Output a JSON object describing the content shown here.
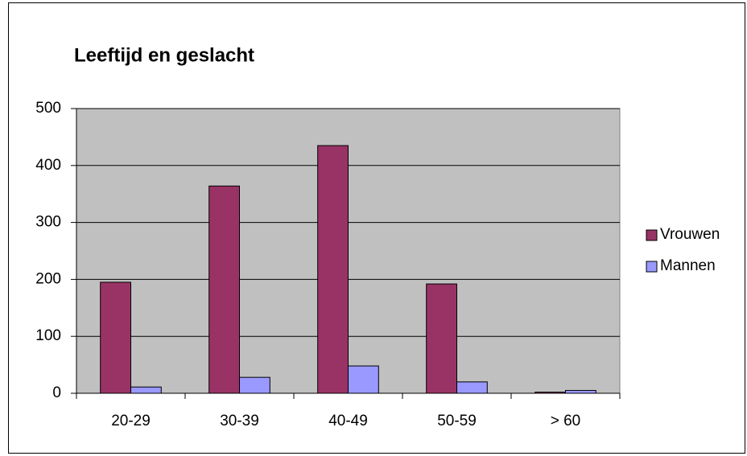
{
  "chart_data": {
    "type": "bar",
    "title": "Leeftijd en geslacht",
    "categories": [
      "20-29",
      "30-39",
      "40-49",
      "50-59",
      "> 60"
    ],
    "series": [
      {
        "name": "Vrouwen",
        "color": "#993366",
        "values": [
          195,
          364,
          435,
          192,
          2
        ]
      },
      {
        "name": "Mannen",
        "color": "#9999ff",
        "values": [
          11,
          28,
          48,
          20,
          5
        ]
      }
    ],
    "ylim": [
      0,
      500
    ],
    "yticks": [
      0,
      100,
      200,
      300,
      400,
      500
    ],
    "grid": true,
    "legend": "right"
  }
}
